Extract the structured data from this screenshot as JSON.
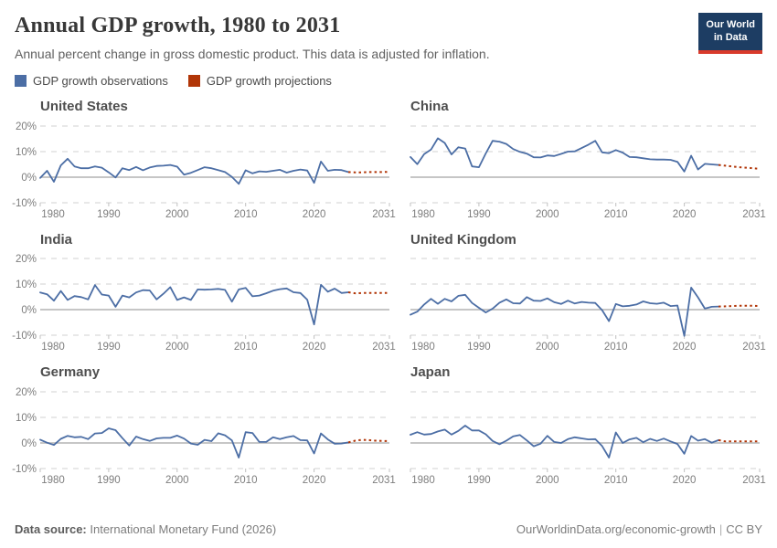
{
  "header": {
    "title": "Annual GDP growth, 1980 to 2031",
    "subtitle": "Annual percent change in gross domestic product. This data is adjusted for inflation.",
    "logo_line1": "Our World",
    "logo_line2": "in Data"
  },
  "legend": {
    "observations_label": "GDP growth observations",
    "projections_label": "GDP growth projections"
  },
  "colors": {
    "observation_line": "#4C6EA5",
    "projection_line": "#B13507",
    "gridline": "#dadada",
    "zero_line": "#c6c6c6",
    "tick_text": "#7d7d7d",
    "logo_bg": "#1d3d63",
    "logo_strip": "#d93a2b"
  },
  "chart_data": {
    "type": "line",
    "title": "Annual GDP growth, 1980 to 2031",
    "subtitle": "Annual percent change in gross domestic product. This data is adjusted for inflation.",
    "x_min": 1980,
    "x_max": 2031,
    "ylim": [
      -10,
      20
    ],
    "y_gridlines": [
      20,
      10,
      0,
      -10
    ],
    "axis": {
      "y_tick_labels": [
        "20%",
        "10%",
        "0%",
        "-10%"
      ],
      "y_tick_values": [
        20,
        10,
        0,
        -10
      ],
      "x_tick_labels": [
        "1980",
        "1990",
        "2000",
        "2010",
        "2020",
        "2031"
      ],
      "x_tick_values": [
        1980,
        1990,
        2000,
        2010,
        2020,
        2031
      ]
    },
    "observation_start_year": 1980,
    "projection_start_year": 2025,
    "legend_entries": [
      "GDP growth observations",
      "GDP growth projections"
    ],
    "series": [
      {
        "name": "United States",
        "observations": [
          -0.3,
          2.5,
          -1.8,
          4.6,
          7.2,
          4.2,
          3.5,
          3.5,
          4.2,
          3.7,
          1.9,
          -0.1,
          3.5,
          2.8,
          4.0,
          2.7,
          3.8,
          4.4,
          4.5,
          4.8,
          4.1,
          1.0,
          1.7,
          2.8,
          3.9,
          3.5,
          2.8,
          2.0,
          0.1,
          -2.6,
          2.7,
          1.5,
          2.3,
          2.1,
          2.5,
          2.9,
          1.8,
          2.5,
          3.0,
          2.6,
          -2.2,
          6.1,
          2.5,
          2.9,
          2.8,
          2.0
        ],
        "projections": [
          2.0,
          1.9,
          1.9,
          2.0,
          2.0,
          2.0,
          2.1
        ]
      },
      {
        "name": "China",
        "observations": [
          7.9,
          5.1,
          9.0,
          10.8,
          15.2,
          13.4,
          8.9,
          11.7,
          11.2,
          4.2,
          3.9,
          9.3,
          14.2,
          13.9,
          13.0,
          11.0,
          9.9,
          9.2,
          7.8,
          7.7,
          8.5,
          8.3,
          9.1,
          10.0,
          10.1,
          11.4,
          12.7,
          14.2,
          9.7,
          9.4,
          10.6,
          9.6,
          7.9,
          7.8,
          7.4,
          7.0,
          6.9,
          6.9,
          6.8,
          6.0,
          2.2,
          8.4,
          3.0,
          5.2,
          5.0,
          4.8
        ],
        "projections": [
          4.8,
          4.5,
          4.2,
          3.9,
          3.7,
          3.5,
          3.3
        ]
      },
      {
        "name": "India",
        "observations": [
          6.7,
          6.0,
          3.5,
          7.3,
          3.8,
          5.3,
          4.9,
          4.0,
          9.6,
          5.9,
          5.5,
          1.1,
          5.5,
          4.8,
          6.7,
          7.6,
          7.5,
          4.0,
          6.2,
          8.8,
          3.8,
          4.8,
          3.8,
          7.9,
          7.8,
          7.9,
          8.1,
          7.7,
          3.1,
          7.9,
          8.5,
          5.2,
          5.5,
          6.4,
          7.4,
          8.0,
          8.3,
          6.8,
          6.5,
          3.9,
          -5.8,
          9.7,
          7.0,
          8.2,
          6.5,
          6.8
        ],
        "projections": [
          6.8,
          6.4,
          6.5,
          6.5,
          6.5,
          6.5,
          6.5
        ]
      },
      {
        "name": "United Kingdom",
        "observations": [
          -2.0,
          -0.8,
          2.0,
          4.2,
          2.3,
          4.2,
          3.2,
          5.4,
          5.8,
          2.6,
          0.7,
          -1.1,
          0.4,
          2.7,
          4.0,
          2.5,
          2.4,
          4.9,
          3.5,
          3.4,
          4.4,
          2.9,
          2.2,
          3.5,
          2.4,
          3.0,
          2.7,
          2.6,
          -0.2,
          -4.5,
          2.2,
          1.3,
          1.5,
          2.0,
          3.2,
          2.5,
          2.3,
          2.7,
          1.4,
          1.6,
          -10.3,
          8.6,
          4.8,
          0.4,
          1.1,
          1.2
        ],
        "projections": [
          1.2,
          1.3,
          1.4,
          1.5,
          1.5,
          1.5,
          1.4
        ]
      },
      {
        "name": "Germany",
        "observations": [
          1.3,
          0.1,
          -0.8,
          1.6,
          2.8,
          2.2,
          2.4,
          1.5,
          3.7,
          3.9,
          5.7,
          5.0,
          1.9,
          -1.0,
          2.5,
          1.5,
          0.8,
          1.8,
          2.0,
          2.0,
          2.9,
          1.7,
          -0.2,
          -0.7,
          1.2,
          0.7,
          3.8,
          3.0,
          1.0,
          -5.7,
          4.2,
          3.9,
          0.4,
          0.4,
          2.2,
          1.5,
          2.2,
          2.7,
          1.1,
          1.0,
          -4.1,
          3.7,
          1.4,
          -0.3,
          -0.2,
          0.2
        ],
        "projections": [
          0.2,
          0.9,
          1.2,
          1.1,
          0.9,
          0.8,
          0.7
        ]
      },
      {
        "name": "Japan",
        "observations": [
          3.2,
          4.2,
          3.3,
          3.5,
          4.5,
          5.2,
          3.3,
          4.7,
          6.8,
          4.9,
          4.9,
          3.4,
          0.8,
          -0.5,
          0.9,
          2.6,
          3.1,
          1.0,
          -1.3,
          -0.3,
          2.8,
          0.4,
          0.0,
          1.5,
          2.2,
          1.8,
          1.4,
          1.5,
          -1.2,
          -5.7,
          4.1,
          0.0,
          1.4,
          2.0,
          0.3,
          1.6,
          0.8,
          1.7,
          0.6,
          -0.4,
          -4.2,
          2.7,
          0.9,
          1.5,
          0.1,
          1.1
        ],
        "projections": [
          1.1,
          0.6,
          0.6,
          0.6,
          0.6,
          0.6,
          0.6
        ]
      }
    ]
  },
  "footer": {
    "source_label": "Data source:",
    "source_value": " International Monetary Fund (2026)",
    "url": "OurWorldinData.org/economic-growth",
    "license": "CC BY"
  }
}
